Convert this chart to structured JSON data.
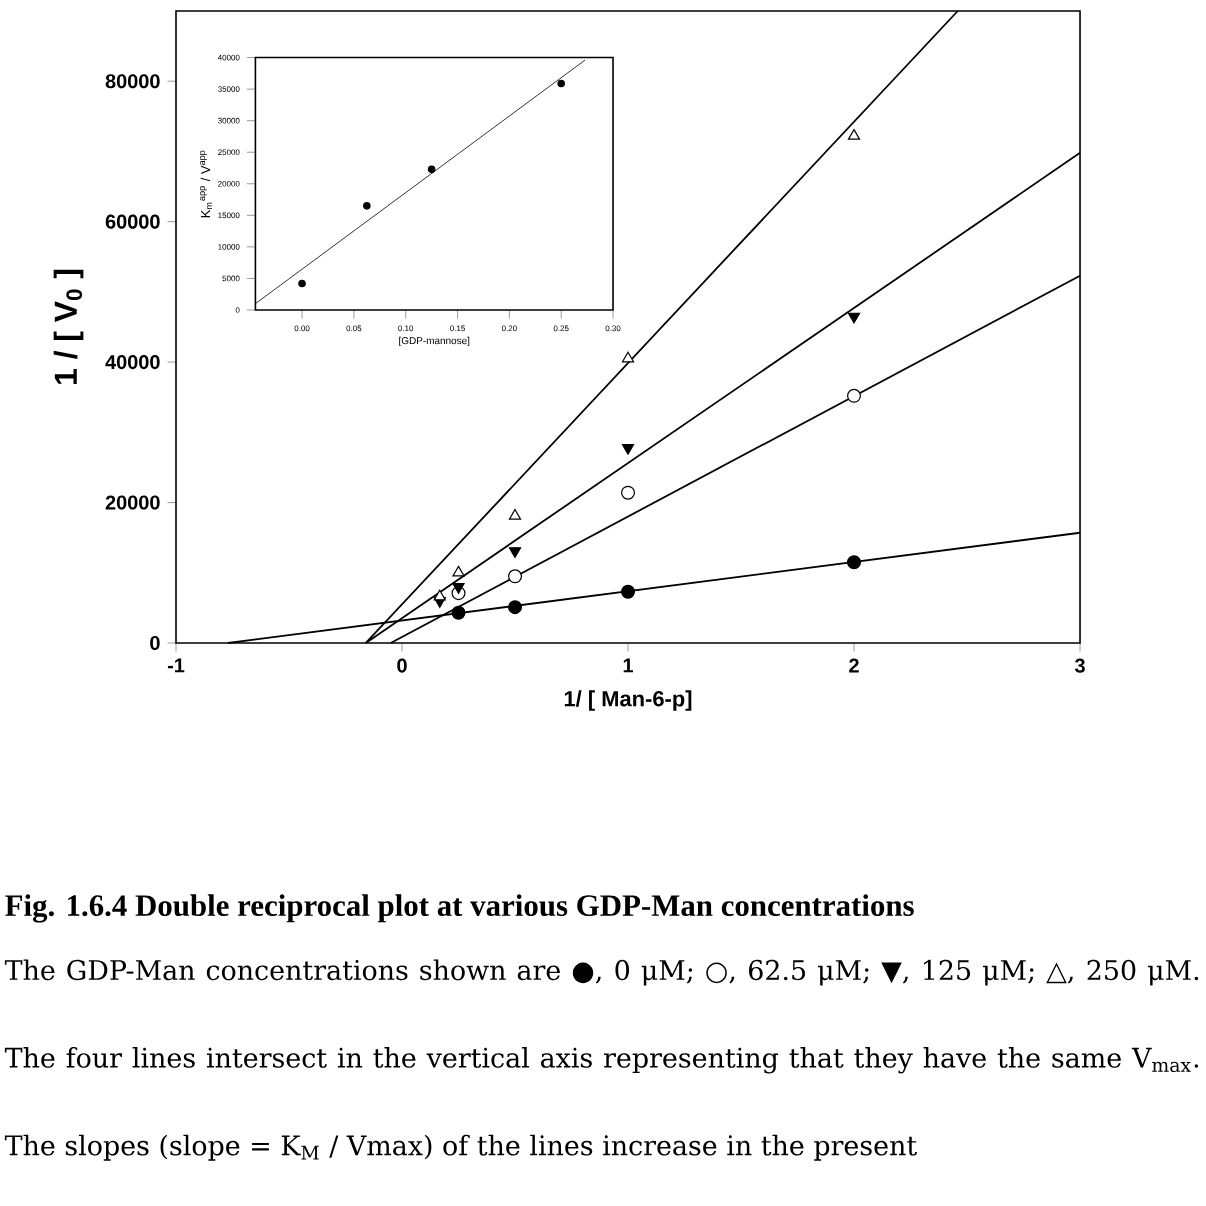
{
  "chart_data": [
    {
      "type": "scatter",
      "xlabel": "1/ [ Man-6-p]",
      "ylabel": "1 / [ V$_{0}$ ]",
      "xlim": [
        -1,
        3
      ],
      "ylim": [
        0,
        90000
      ],
      "xticks": [
        -1,
        0,
        1,
        2,
        3
      ],
      "yticks": [
        0,
        20000,
        40000,
        60000,
        80000
      ],
      "series": [
        {
          "color": "#000000",
          "marker": "circle",
          "x": [
            0.25,
            0.5,
            1,
            2
          ],
          "values": [
            4300,
            5100,
            7300,
            11500
          ]
        },
        {
          "color": "#ffffff",
          "marker": "circle",
          "x": [
            0.25,
            0.5,
            1,
            2
          ],
          "values": [
            7100,
            9500,
            21400,
            35200
          ]
        },
        {
          "color": "#000000",
          "marker": "triangle_down",
          "x": [
            0.167,
            0.25,
            0.5,
            1,
            2
          ],
          "values": [
            6000,
            8000,
            13100,
            27800,
            46500
          ]
        },
        {
          "color": "#ffffff",
          "marker": "triangle",
          "x": [
            0.167,
            0.25,
            0.5,
            1,
            2
          ],
          "values": [
            6600,
            10000,
            18100,
            40500,
            72200
          ]
        },
        {
          "type": "line",
          "color": "#000000",
          "x": [
            -0.77,
            3
          ],
          "values": [
            0,
            15700
          ]
        },
        {
          "type": "line",
          "color": "#000000",
          "x": [
            -0.05,
            3
          ],
          "values": [
            0,
            52300
          ]
        },
        {
          "type": "line",
          "color": "#000000",
          "x": [
            -0.16,
            3
          ],
          "values": [
            0,
            69800
          ]
        },
        {
          "type": "line",
          "color": "#000000",
          "x": [
            -0.16,
            2.459
          ],
          "values": [
            0,
            90000
          ]
        }
      ],
      "annotations": [
        "Fig. 1.6.4 Double reciprocal plot at various GDP-Man concentrations",
        "The GDP-Man concentrations shown are ●, 0 μM; ○, 62.5 μM; ▼, 125 μM; △, 250 μM. The four lines intersect in the vertical axis representing that they have the same V$_{max}$. The slopes (slope = K$_{M}$ / Vmax) of the lines increase in the present"
      ]
    },
    {
      "type": "scatter",
      "xlabel": "[GDP-mannose]",
      "ylabel": "K$_{m}$$^{app}$ / V$^{app}$",
      "xlim": [
        -0.045,
        0.3
      ],
      "ylim": [
        0,
        40000
      ],
      "xticks": [
        {
          "value": 0,
          "label": "0.00"
        },
        {
          "value": 0.05,
          "label": "0.05"
        },
        {
          "value": 0.1,
          "label": "0.10"
        },
        {
          "value": 0.15,
          "label": "0.15"
        },
        {
          "value": 0.2,
          "label": "0.20"
        },
        {
          "value": 0.25,
          "label": "0.25"
        },
        {
          "value": 0.3,
          "label": "0.30"
        }
      ],
      "yticks": [
        0,
        5000,
        10000,
        15000,
        20000,
        25000,
        30000,
        35000,
        40000
      ],
      "series": [
        {
          "color": "#000000",
          "marker": "circle",
          "x": [
            0,
            0.0625,
            0.125,
            0.25
          ],
          "values": [
            4200,
            16500,
            22300,
            35900
          ]
        },
        {
          "type": "line",
          "color": "#000000",
          "x": [
            -0.045,
            0.273
          ],
          "values": [
            1000,
            39600
          ]
        }
      ]
    }
  ]
}
